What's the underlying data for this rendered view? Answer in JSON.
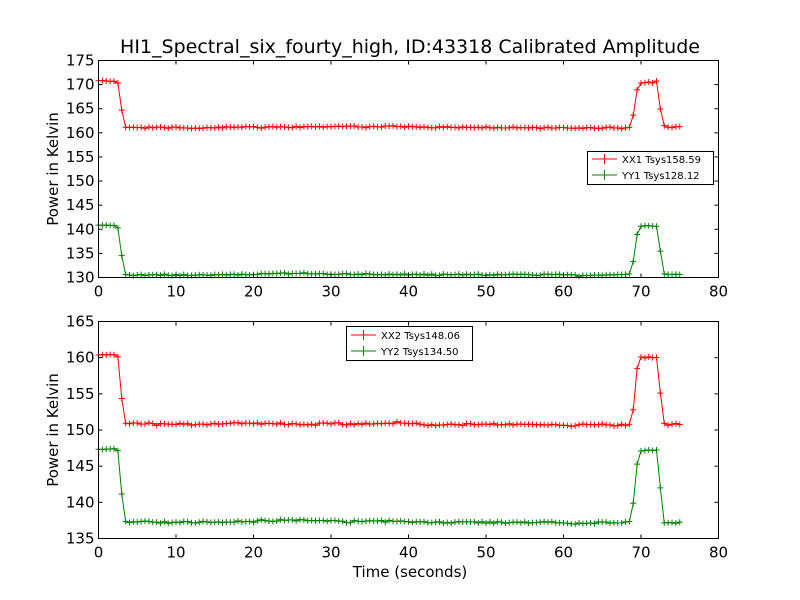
{
  "chart_data": [
    {
      "type": "line",
      "title": "HI1_Spectral_six_fourty_high, ID:43318 Calibrated Amplitude",
      "xlabel": "",
      "ylabel": "Power in Kelvin",
      "xlim": [
        0,
        80
      ],
      "ylim": [
        130,
        175
      ],
      "x_ticks": [
        "0",
        "10",
        "20",
        "30",
        "40",
        "50",
        "60",
        "70",
        "80"
      ],
      "y_ticks": [
        "130",
        "135",
        "140",
        "145",
        "150",
        "155",
        "160",
        "165",
        "170",
        "175"
      ],
      "grid": false,
      "legend_position": "right",
      "x": [
        0.0,
        0.5,
        1.0,
        1.5,
        2.0,
        2.5,
        3.0,
        3.5,
        4.0,
        4.5,
        5.0,
        5.5,
        6.0,
        6.5,
        7.0,
        7.5,
        8.0,
        8.5,
        9.0,
        9.5,
        10.0,
        10.5,
        11.0,
        11.5,
        12.0,
        12.5,
        13.0,
        13.5,
        14.0,
        14.5,
        15.0,
        15.5,
        16.0,
        16.5,
        17.0,
        17.5,
        18.0,
        18.5,
        19.0,
        19.5,
        20.0,
        20.5,
        21.0,
        21.5,
        22.0,
        22.5,
        23.0,
        23.5,
        24.0,
        24.5,
        25.0,
        25.5,
        26.0,
        26.5,
        27.0,
        27.5,
        28.0,
        28.5,
        29.0,
        29.5,
        30.0,
        30.5,
        31.0,
        31.5,
        32.0,
        32.5,
        33.0,
        33.5,
        34.0,
        34.5,
        35.0,
        35.5,
        36.0,
        36.5,
        37.0,
        37.5,
        38.0,
        38.5,
        39.0,
        39.5,
        40.0,
        40.5,
        41.0,
        41.5,
        42.0,
        42.5,
        43.0,
        43.5,
        44.0,
        44.5,
        45.0,
        45.5,
        46.0,
        46.5,
        47.0,
        47.5,
        48.0,
        48.5,
        49.0,
        49.5,
        50.0,
        50.5,
        51.0,
        51.5,
        52.0,
        52.5,
        53.0,
        53.5,
        54.0,
        54.5,
        55.0,
        55.5,
        56.0,
        56.5,
        57.0,
        57.5,
        58.0,
        58.5,
        59.0,
        59.5,
        60.0,
        60.5,
        61.0,
        61.5,
        62.0,
        62.5,
        63.0,
        63.5,
        64.0,
        64.5,
        65.0,
        65.5,
        66.0,
        66.5,
        67.0,
        67.5,
        68.0,
        68.5,
        69.0,
        69.5,
        70.0,
        70.5,
        71.0,
        71.5,
        72.0,
        72.5,
        73.0,
        73.5,
        74.0,
        74.5,
        75.0
      ],
      "series": [
        {
          "name": "XX1 Tsys158.59",
          "color": "#ff0000",
          "values": [
            170.83,
            170.86,
            170.75,
            170.68,
            170.69,
            170.33,
            164.7,
            161.16,
            161.1,
            161.17,
            161.07,
            161.13,
            160.94,
            161.2,
            161.05,
            161.17,
            161.22,
            161.09,
            160.96,
            161.16,
            161.22,
            161.03,
            161.04,
            161.01,
            160.91,
            161.0,
            160.92,
            160.98,
            161.11,
            161.06,
            161.0,
            161.18,
            161.03,
            161.25,
            161.19,
            161.14,
            161.21,
            161.17,
            161.32,
            161.24,
            161.31,
            161.13,
            160.98,
            161.15,
            161.25,
            161.28,
            161.16,
            161.28,
            161.22,
            161.12,
            161.09,
            161.34,
            161.1,
            161.29,
            161.27,
            161.33,
            161.22,
            161.33,
            161.17,
            161.3,
            161.26,
            161.34,
            161.4,
            161.28,
            161.36,
            161.39,
            161.43,
            161.22,
            161.23,
            161.08,
            161.3,
            161.35,
            161.27,
            161.18,
            161.43,
            161.4,
            161.46,
            161.3,
            161.34,
            161.16,
            161.37,
            161.27,
            161.25,
            161.14,
            161.24,
            161.13,
            161.06,
            161.04,
            161.3,
            161.12,
            161.25,
            161.11,
            161.13,
            161.04,
            161.23,
            161.11,
            161.15,
            161.07,
            161.17,
            161.02,
            161.23,
            161.09,
            160.97,
            161.12,
            161.04,
            160.99,
            161.05,
            161.2,
            161.03,
            161.08,
            161.07,
            161.0,
            161.13,
            161.1,
            160.88,
            161.05,
            161.17,
            160.98,
            160.99,
            161.13,
            161.1,
            160.98,
            160.98,
            160.95,
            161.03,
            160.93,
            161.08,
            161.1,
            160.94,
            160.96,
            160.95,
            161.14,
            161.2,
            160.99,
            161.02,
            160.84,
            161.02,
            161.13,
            163.66,
            168.91,
            170.32,
            170.41,
            170.53,
            170.35,
            170.71,
            164.93,
            161.47,
            161.17,
            161.09,
            161.27,
            161.3
          ]
        },
        {
          "name": "YY1 Tsys128.12",
          "color": "#008000",
          "values": [
            140.86,
            140.83,
            140.87,
            140.78,
            140.81,
            140.27,
            134.53,
            130.61,
            130.53,
            130.4,
            130.51,
            130.62,
            130.4,
            130.55,
            130.56,
            130.6,
            130.44,
            130.68,
            130.46,
            130.4,
            130.6,
            130.4,
            130.62,
            130.38,
            130.44,
            130.5,
            130.57,
            130.55,
            130.5,
            130.45,
            130.62,
            130.55,
            130.66,
            130.5,
            130.66,
            130.65,
            130.48,
            130.69,
            130.6,
            130.52,
            130.6,
            130.63,
            130.8,
            130.8,
            130.74,
            130.86,
            130.81,
            130.9,
            130.95,
            130.7,
            130.82,
            130.82,
            130.83,
            130.98,
            130.79,
            130.75,
            130.76,
            130.8,
            130.84,
            130.66,
            130.67,
            130.62,
            130.66,
            130.79,
            130.81,
            130.63,
            130.6,
            130.72,
            130.57,
            130.84,
            130.71,
            130.59,
            130.58,
            130.66,
            130.53,
            130.72,
            130.56,
            130.68,
            130.53,
            130.75,
            130.5,
            130.64,
            130.67,
            130.52,
            130.71,
            130.47,
            130.71,
            130.43,
            130.43,
            130.7,
            130.59,
            130.56,
            130.63,
            130.69,
            130.49,
            130.7,
            130.55,
            130.63,
            130.7,
            130.53,
            130.45,
            130.57,
            130.47,
            130.67,
            130.54,
            130.58,
            130.66,
            130.71,
            130.66,
            130.67,
            130.67,
            130.6,
            130.51,
            130.42,
            130.5,
            130.73,
            130.68,
            130.59,
            130.66,
            130.68,
            130.51,
            130.59,
            130.57,
            130.52,
            130.24,
            130.44,
            130.4,
            130.44,
            130.53,
            130.49,
            130.46,
            130.54,
            130.56,
            130.52,
            130.63,
            130.62,
            130.64,
            130.75,
            133.33,
            138.92,
            140.63,
            140.73,
            140.73,
            140.69,
            140.64,
            135.46,
            130.74,
            130.66,
            130.62,
            130.67,
            130.62
          ]
        }
      ]
    },
    {
      "type": "line",
      "xlabel": "Time (seconds)",
      "ylabel": "Power in Kelvin",
      "xlim": [
        0,
        80
      ],
      "ylim": [
        135,
        165
      ],
      "x_ticks": [
        "0",
        "10",
        "20",
        "30",
        "40",
        "50",
        "60",
        "70",
        "80"
      ],
      "y_ticks": [
        "135",
        "140",
        "145",
        "150",
        "155",
        "160",
        "165"
      ],
      "grid": false,
      "legend_position": "top-center",
      "x": [
        0.0,
        0.5,
        1.0,
        1.5,
        2.0,
        2.5,
        3.0,
        3.5,
        4.0,
        4.5,
        5.0,
        5.5,
        6.0,
        6.5,
        7.0,
        7.5,
        8.0,
        8.5,
        9.0,
        9.5,
        10.0,
        10.5,
        11.0,
        11.5,
        12.0,
        12.5,
        13.0,
        13.5,
        14.0,
        14.5,
        15.0,
        15.5,
        16.0,
        16.5,
        17.0,
        17.5,
        18.0,
        18.5,
        19.0,
        19.5,
        20.0,
        20.5,
        21.0,
        21.5,
        22.0,
        22.5,
        23.0,
        23.5,
        24.0,
        24.5,
        25.0,
        25.5,
        26.0,
        26.5,
        27.0,
        27.5,
        28.0,
        28.5,
        29.0,
        29.5,
        30.0,
        30.5,
        31.0,
        31.5,
        32.0,
        32.5,
        33.0,
        33.5,
        34.0,
        34.5,
        35.0,
        35.5,
        36.0,
        36.5,
        37.0,
        37.5,
        38.0,
        38.5,
        39.0,
        39.5,
        40.0,
        40.5,
        41.0,
        41.5,
        42.0,
        42.5,
        43.0,
        43.5,
        44.0,
        44.5,
        45.0,
        45.5,
        46.0,
        46.5,
        47.0,
        47.5,
        48.0,
        48.5,
        49.0,
        49.5,
        50.0,
        50.5,
        51.0,
        51.5,
        52.0,
        52.5,
        53.0,
        53.5,
        54.0,
        54.5,
        55.0,
        55.5,
        56.0,
        56.5,
        57.0,
        57.5,
        58.0,
        58.5,
        59.0,
        59.5,
        60.0,
        60.5,
        61.0,
        61.5,
        62.0,
        62.5,
        63.0,
        63.5,
        64.0,
        64.5,
        65.0,
        65.5,
        66.0,
        66.5,
        67.0,
        67.5,
        68.0,
        68.5,
        69.0,
        69.5,
        70.0,
        70.5,
        71.0,
        71.5,
        72.0,
        72.5,
        73.0,
        73.5,
        74.0,
        74.5,
        75.0
      ],
      "series": [
        {
          "name": "XX2 Tsys148.06",
          "color": "#ff0000",
          "values": [
            160.37,
            160.42,
            160.38,
            160.44,
            160.4,
            160.13,
            154.36,
            150.93,
            150.87,
            150.98,
            150.95,
            150.81,
            150.83,
            150.98,
            150.89,
            150.63,
            150.89,
            150.85,
            150.81,
            150.79,
            150.76,
            150.91,
            150.8,
            150.88,
            150.65,
            150.74,
            150.82,
            150.82,
            150.71,
            150.83,
            150.92,
            150.8,
            150.84,
            150.89,
            150.94,
            151.01,
            151.01,
            150.87,
            150.97,
            150.95,
            150.86,
            150.99,
            150.79,
            150.94,
            150.92,
            150.88,
            150.82,
            150.98,
            150.78,
            150.75,
            150.9,
            150.85,
            150.73,
            150.77,
            150.7,
            150.81,
            150.65,
            150.95,
            150.98,
            150.94,
            150.83,
            150.98,
            150.98,
            150.75,
            150.71,
            150.88,
            150.72,
            150.89,
            150.77,
            150.95,
            150.81,
            150.85,
            150.92,
            150.86,
            150.94,
            150.93,
            150.87,
            151.14,
            150.97,
            150.95,
            150.86,
            150.9,
            150.95,
            150.79,
            150.71,
            150.61,
            150.75,
            150.59,
            150.71,
            150.68,
            150.76,
            150.83,
            150.73,
            150.75,
            150.62,
            150.89,
            150.86,
            150.73,
            150.72,
            150.81,
            150.82,
            150.76,
            150.88,
            150.68,
            150.74,
            150.73,
            150.86,
            150.69,
            150.8,
            150.83,
            150.76,
            150.79,
            150.77,
            150.7,
            150.74,
            150.72,
            150.68,
            150.78,
            150.75,
            150.64,
            150.66,
            150.6,
            150.52,
            150.58,
            150.72,
            150.83,
            150.74,
            150.74,
            150.72,
            150.75,
            150.83,
            150.7,
            150.71,
            150.55,
            150.62,
            150.8,
            150.62,
            150.8,
            152.8,
            158.48,
            160.09,
            159.97,
            160.11,
            160.0,
            160.03,
            155.09,
            150.92,
            150.66,
            150.8,
            150.9,
            150.76
          ]
        },
        {
          "name": "YY2 Tsys134.50",
          "color": "#008000",
          "values": [
            147.34,
            147.31,
            147.35,
            147.37,
            147.4,
            147.13,
            141.15,
            137.37,
            137.2,
            137.32,
            137.28,
            137.35,
            137.4,
            137.37,
            137.27,
            137.26,
            137.12,
            137.34,
            137.1,
            137.21,
            137.27,
            137.19,
            137.35,
            137.33,
            137.17,
            137.15,
            137.25,
            137.37,
            137.29,
            137.21,
            137.24,
            137.3,
            137.19,
            137.28,
            137.26,
            137.27,
            137.43,
            137.3,
            137.34,
            137.37,
            137.25,
            137.44,
            137.6,
            137.47,
            137.4,
            137.36,
            137.41,
            137.61,
            137.5,
            137.55,
            137.57,
            137.43,
            137.61,
            137.58,
            137.45,
            137.49,
            137.44,
            137.49,
            137.49,
            137.39,
            137.49,
            137.48,
            137.4,
            137.38,
            137.2,
            137.19,
            137.47,
            137.38,
            137.33,
            137.41,
            137.45,
            137.43,
            137.4,
            137.48,
            137.27,
            137.51,
            137.38,
            137.35,
            137.44,
            137.33,
            137.34,
            137.21,
            137.31,
            137.29,
            137.33,
            137.18,
            137.2,
            137.24,
            137.31,
            137.12,
            137.21,
            137.13,
            137.27,
            137.34,
            137.28,
            137.32,
            137.28,
            137.3,
            137.16,
            137.32,
            137.12,
            137.29,
            137.11,
            137.31,
            137.25,
            137.1,
            137.2,
            137.25,
            137.26,
            137.17,
            137.3,
            137.13,
            137.2,
            137.19,
            137.26,
            137.34,
            137.24,
            137.32,
            137.18,
            137.17,
            137.14,
            137.1,
            137.03,
            136.99,
            137.14,
            137.05,
            137.11,
            137.15,
            137.05,
            137.3,
            137.26,
            137.26,
            137.13,
            137.18,
            137.14,
            137.14,
            137.3,
            137.33,
            139.87,
            145.28,
            147.1,
            147.17,
            147.24,
            147.17,
            147.23,
            142.0,
            137.16,
            137.18,
            137.19,
            137.1,
            137.27
          ]
        }
      ]
    }
  ]
}
